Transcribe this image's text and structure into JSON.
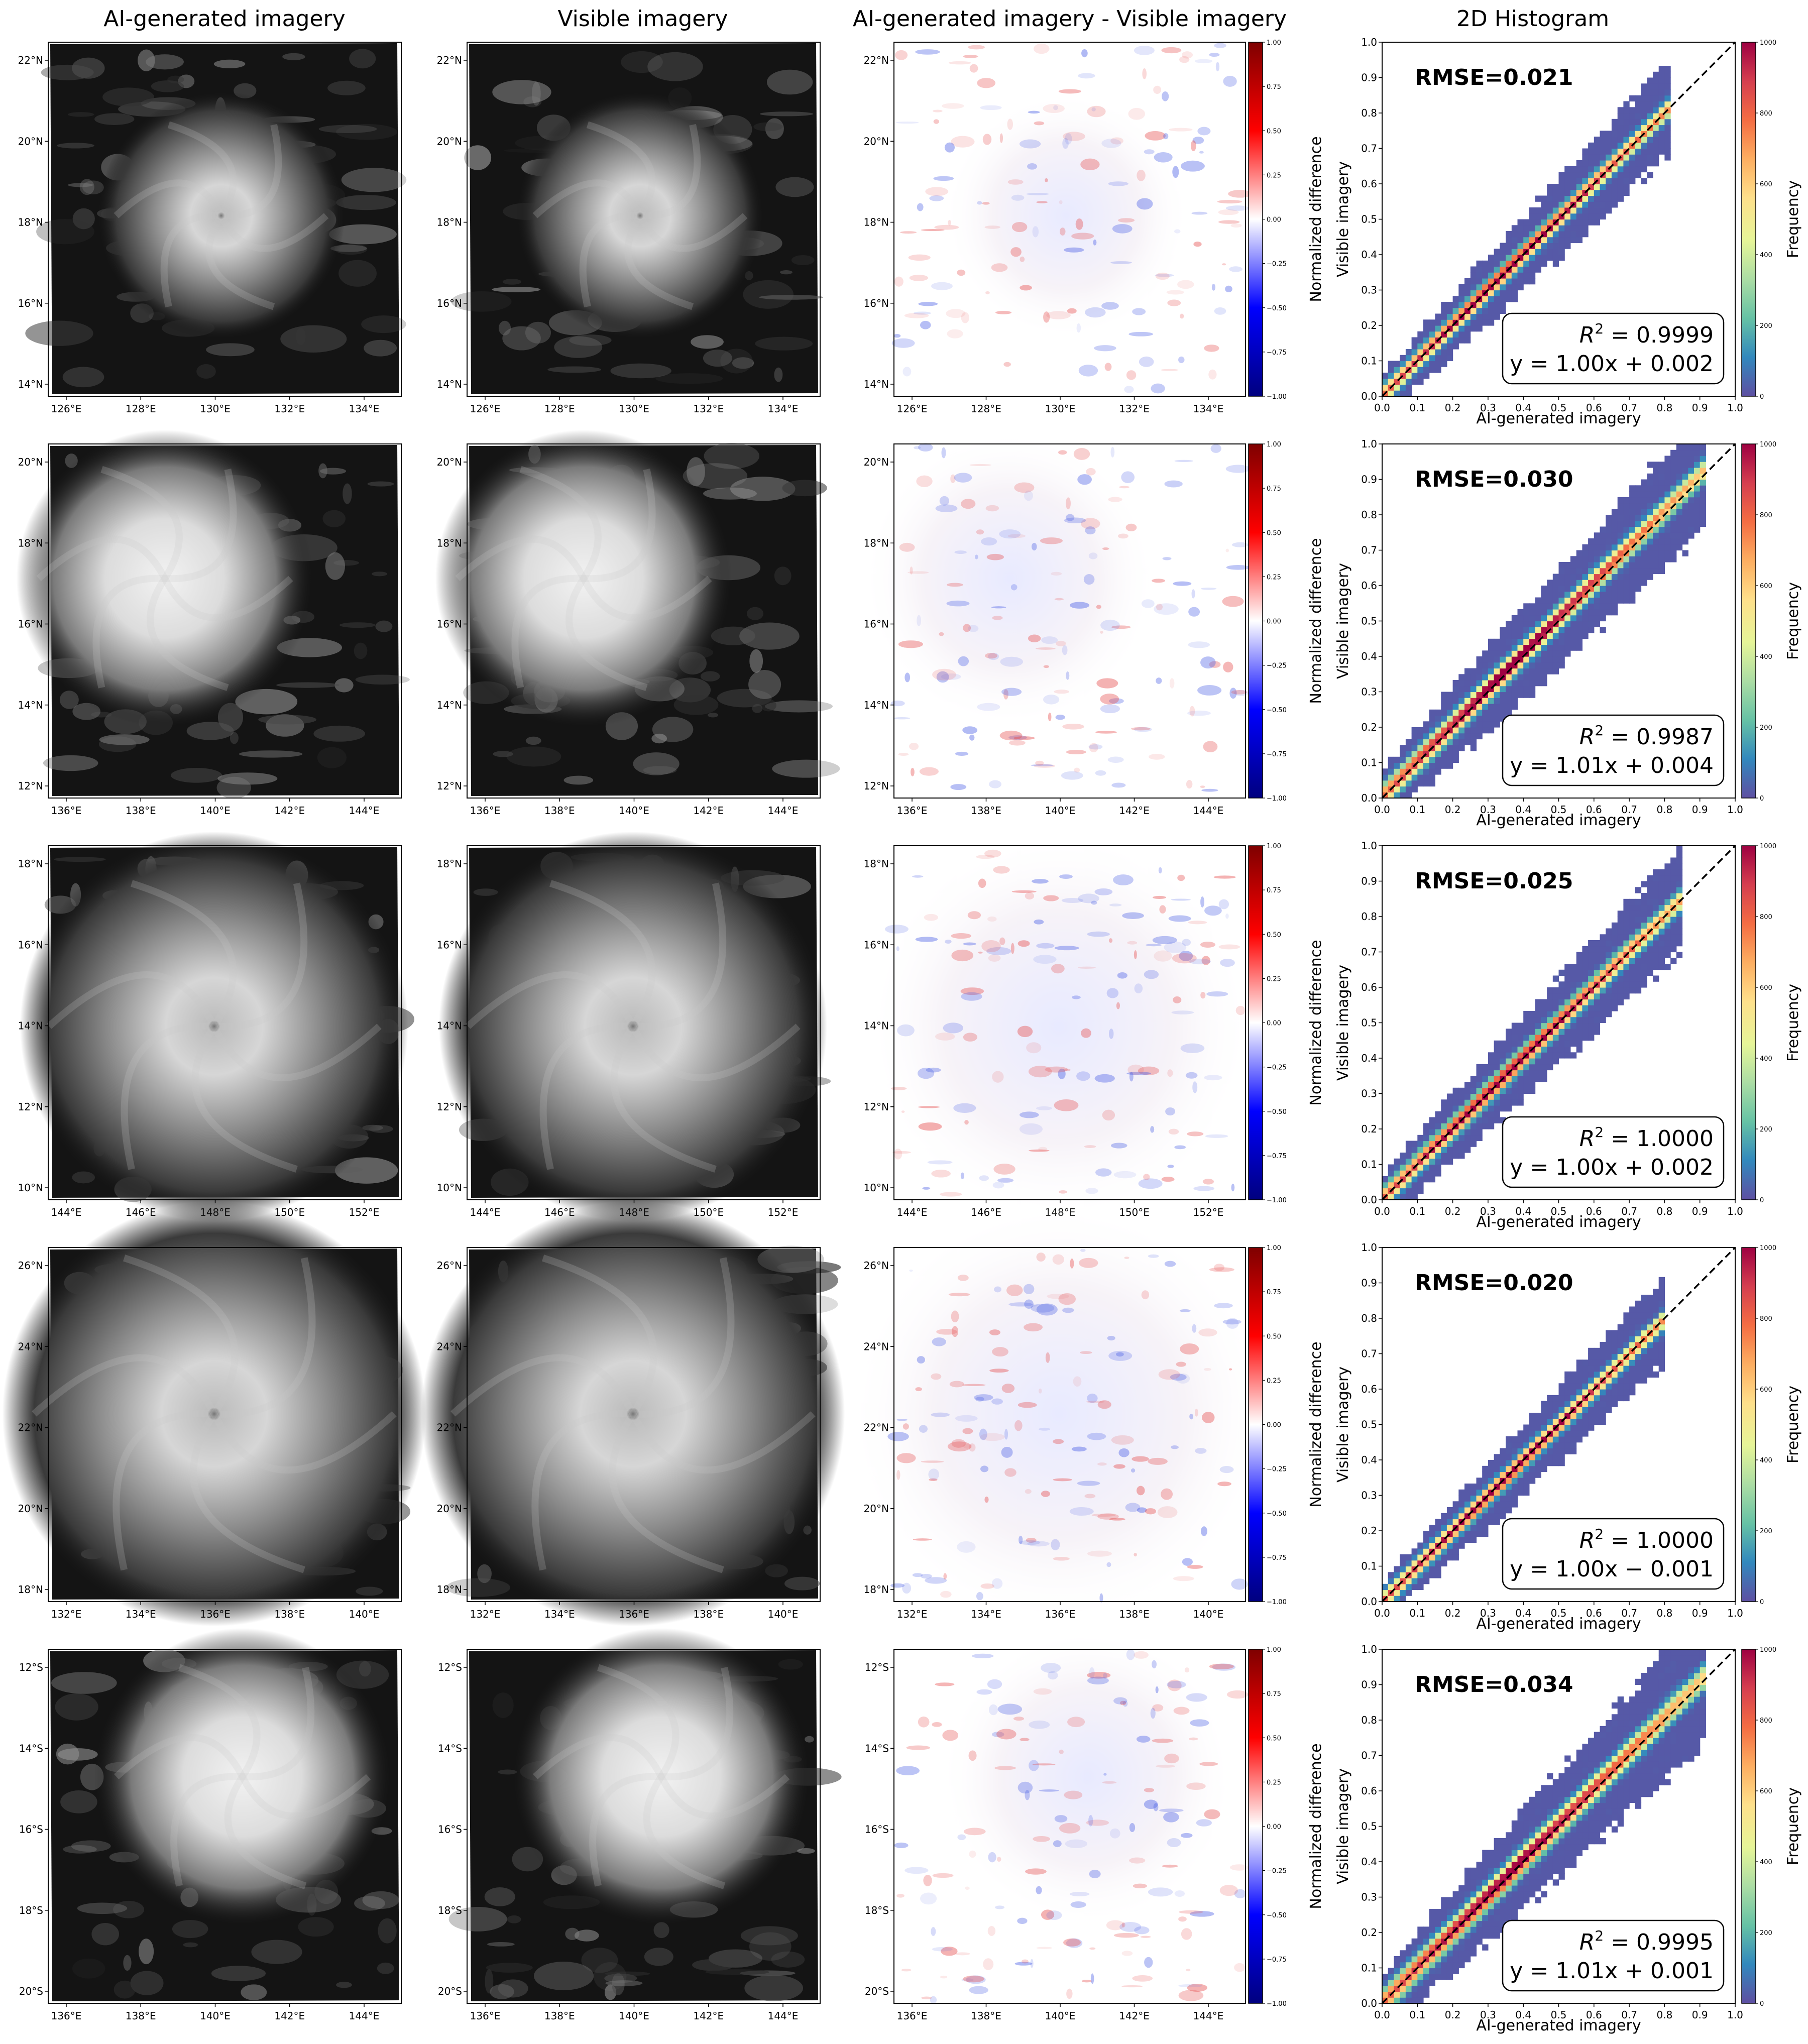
{
  "columns": [
    "AI-generated imagery",
    "Visible imagery",
    "AI-generated imagery - Visible imagery",
    "2D Histogram"
  ],
  "diff_colorbar": {
    "label": "Normalized difference",
    "ticks": [
      "1.00",
      "0.75",
      "0.50",
      "0.25",
      "0.00",
      "−0.25",
      "−0.50",
      "−0.75",
      "−1.00"
    ],
    "colors": [
      "#00007f",
      "#0000ff",
      "#ffffff",
      "#ff0000",
      "#7f0000"
    ]
  },
  "hist_colorbar": {
    "label": "Frequency",
    "ticks": [
      "1000",
      "800",
      "600",
      "400",
      "200",
      "0"
    ],
    "colors": [
      "#5e4fa2",
      "#3288bd",
      "#66c2a5",
      "#abdda4",
      "#e6f598",
      "#fee08b",
      "#fdae61",
      "#f46d43",
      "#d53e4f",
      "#9e0142"
    ]
  },
  "colors": {
    "satellite_dark": "#141414",
    "satellite_cloud": "#e6e6e6",
    "dashed_line": "#000000"
  },
  "chart_data": [
    {
      "type": "heatmap",
      "panel_row": 1,
      "map_lat_ticks": [
        "14°N",
        "16°N",
        "18°N",
        "20°N",
        "22°N"
      ],
      "map_lon_ticks": [
        "126°E",
        "128°E",
        "130°E",
        "132°E",
        "134°E"
      ],
      "title": "2D Histogram",
      "xlabel": "AI-generated imagery",
      "ylabel": "Visible imagery",
      "xlim": [
        0,
        1
      ],
      "ylim": [
        0,
        1
      ],
      "x_ticks": [
        "0.0",
        "0.1",
        "0.2",
        "0.3",
        "0.4",
        "0.5",
        "0.6",
        "0.7",
        "0.8",
        "0.9",
        "1.0"
      ],
      "y_ticks": [
        "0.0",
        "0.1",
        "0.2",
        "0.3",
        "0.4",
        "0.5",
        "0.6",
        "0.7",
        "0.8",
        "0.9",
        "1.0"
      ],
      "rmse_label": "RMSE=0.021",
      "r2_label": "= 0.9999",
      "fit_label": "y = 1.00x + 0.002",
      "rmse": 0.021,
      "r2": 0.9999,
      "slope": 1.0,
      "intercept": 0.002,
      "data_max": 0.82
    },
    {
      "type": "heatmap",
      "panel_row": 2,
      "map_lat_ticks": [
        "12°N",
        "14°N",
        "16°N",
        "18°N",
        "20°N"
      ],
      "map_lon_ticks": [
        "136°E",
        "138°E",
        "140°E",
        "142°E",
        "144°E"
      ],
      "title": "2D Histogram",
      "xlabel": "AI-generated imagery",
      "ylabel": "Visible imagery",
      "xlim": [
        0,
        1
      ],
      "ylim": [
        0,
        1
      ],
      "x_ticks": [
        "0.0",
        "0.1",
        "0.2",
        "0.3",
        "0.4",
        "0.5",
        "0.6",
        "0.7",
        "0.8",
        "0.9",
        "1.0"
      ],
      "y_ticks": [
        "0.0",
        "0.1",
        "0.2",
        "0.3",
        "0.4",
        "0.5",
        "0.6",
        "0.7",
        "0.8",
        "0.9",
        "1.0"
      ],
      "rmse_label": "RMSE=0.030",
      "r2_label": "= 0.9987",
      "fit_label": "y = 1.01x + 0.004",
      "rmse": 0.03,
      "r2": 0.9987,
      "slope": 1.01,
      "intercept": 0.004,
      "data_max": 0.92
    },
    {
      "type": "heatmap",
      "panel_row": 3,
      "map_lat_ticks": [
        "10°N",
        "12°N",
        "14°N",
        "16°N",
        "18°N"
      ],
      "map_lon_ticks": [
        "144°E",
        "146°E",
        "148°E",
        "150°E",
        "152°E"
      ],
      "title": "2D Histogram",
      "xlabel": "AI-generated imagery",
      "ylabel": "Visible imagery",
      "xlim": [
        0,
        1
      ],
      "ylim": [
        0,
        1
      ],
      "x_ticks": [
        "0.0",
        "0.1",
        "0.2",
        "0.3",
        "0.4",
        "0.5",
        "0.6",
        "0.7",
        "0.8",
        "0.9",
        "1.0"
      ],
      "y_ticks": [
        "0.0",
        "0.1",
        "0.2",
        "0.3",
        "0.4",
        "0.5",
        "0.6",
        "0.7",
        "0.8",
        "0.9",
        "1.0"
      ],
      "rmse_label": "RMSE=0.025",
      "r2_label": "= 1.0000",
      "fit_label": "y = 1.00x + 0.002",
      "rmse": 0.025,
      "r2": 1.0,
      "slope": 1.0,
      "intercept": 0.002,
      "data_max": 0.85
    },
    {
      "type": "heatmap",
      "panel_row": 4,
      "map_lat_ticks": [
        "18°N",
        "20°N",
        "22°N",
        "24°N",
        "26°N"
      ],
      "map_lon_ticks": [
        "132°E",
        "134°E",
        "136°E",
        "138°E",
        "140°E"
      ],
      "title": "2D Histogram",
      "xlabel": "AI-generated imagery",
      "ylabel": "Visible imagery",
      "xlim": [
        0,
        1
      ],
      "ylim": [
        0,
        1
      ],
      "x_ticks": [
        "0.0",
        "0.1",
        "0.2",
        "0.3",
        "0.4",
        "0.5",
        "0.6",
        "0.7",
        "0.8",
        "0.9",
        "1.0"
      ],
      "y_ticks": [
        "0.0",
        "0.1",
        "0.2",
        "0.3",
        "0.4",
        "0.5",
        "0.6",
        "0.7",
        "0.8",
        "0.9",
        "1.0"
      ],
      "rmse_label": "RMSE=0.020",
      "r2_label": "= 1.0000",
      "fit_label": "y = 1.00x − 0.001",
      "rmse": 0.02,
      "r2": 1.0,
      "slope": 1.0,
      "intercept": -0.001,
      "data_max": 0.8
    },
    {
      "type": "heatmap",
      "panel_row": 5,
      "map_lat_ticks": [
        "20°S",
        "18°S",
        "16°S",
        "14°S",
        "12°S"
      ],
      "map_lon_ticks": [
        "136°E",
        "138°E",
        "140°E",
        "142°E",
        "144°E"
      ],
      "title": "2D Histogram",
      "xlabel": "AI-generated imagery",
      "ylabel": "Visible imagery",
      "xlim": [
        0,
        1
      ],
      "ylim": [
        0,
        1
      ],
      "x_ticks": [
        "0.0",
        "0.1",
        "0.2",
        "0.3",
        "0.4",
        "0.5",
        "0.6",
        "0.7",
        "0.8",
        "0.9",
        "1.0"
      ],
      "y_ticks": [
        "0.0",
        "0.1",
        "0.2",
        "0.3",
        "0.4",
        "0.5",
        "0.6",
        "0.7",
        "0.8",
        "0.9",
        "1.0"
      ],
      "rmse_label": "RMSE=0.034",
      "r2_label": "= 0.9995",
      "fit_label": "y = 1.01x + 0.001",
      "rmse": 0.034,
      "r2": 0.9995,
      "slope": 1.01,
      "intercept": 0.001,
      "data_max": 0.92
    }
  ]
}
